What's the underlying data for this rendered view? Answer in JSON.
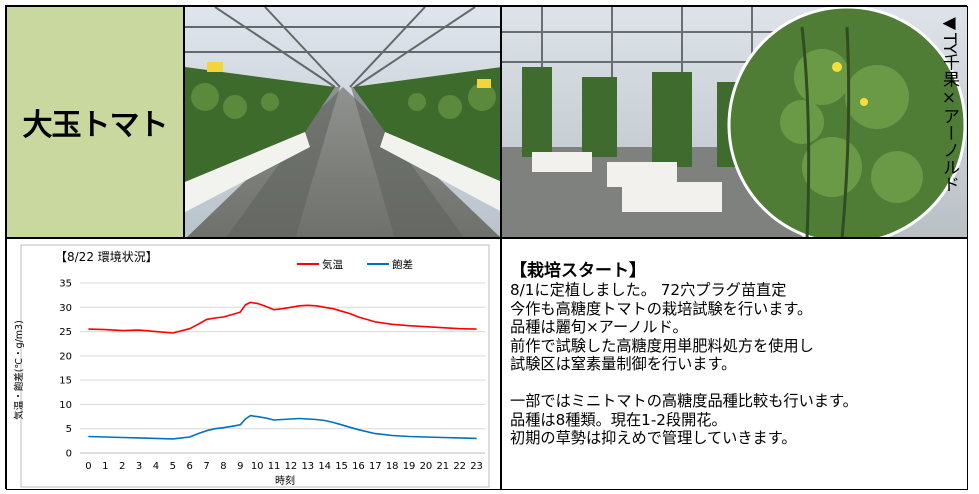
{
  "title": "大玉トマト",
  "photo2_label": "◀TY千果×アーノルド",
  "chart_data": {
    "type": "line",
    "title": "【8/22 環境状況】",
    "xlabel": "時刻",
    "ylabel": "気温・飽差(℃・g/m3)",
    "ylim": [
      0,
      35
    ],
    "yticks": [
      "0",
      "5",
      "10",
      "15",
      "20",
      "25",
      "30",
      "35"
    ],
    "xticks": [
      "0",
      "1",
      "2",
      "3",
      "4",
      "5",
      "6",
      "7",
      "8",
      "9",
      "10",
      "11",
      "12",
      "13",
      "14",
      "15",
      "16",
      "17",
      "18",
      "19",
      "20",
      "21",
      "22",
      "23"
    ],
    "grid": true,
    "legend_position": "top",
    "x": [
      0,
      1,
      2,
      3,
      4,
      5,
      6,
      6.5,
      7,
      7.5,
      8,
      8.5,
      9,
      9.3,
      9.6,
      10,
      10.5,
      11,
      11.5,
      12,
      12.5,
      13,
      13.5,
      14,
      14.5,
      15,
      15.5,
      16,
      17,
      18,
      19,
      20,
      21,
      22,
      23
    ],
    "series": [
      {
        "name": "気温",
        "color": "#ff0000",
        "values": [
          25.5,
          25.4,
          25.2,
          25.3,
          25.0,
          24.7,
          25.6,
          26.5,
          27.5,
          27.8,
          28.0,
          28.5,
          29.0,
          30.5,
          31.0,
          30.8,
          30.2,
          29.5,
          29.7,
          30.0,
          30.3,
          30.4,
          30.3,
          30.0,
          29.7,
          29.2,
          28.7,
          28.0,
          27.0,
          26.5,
          26.2,
          26.0,
          25.8,
          25.6,
          25.5
        ]
      },
      {
        "name": "飽差",
        "color": "#0070c0",
        "values": [
          3.4,
          3.3,
          3.2,
          3.1,
          3.0,
          2.9,
          3.3,
          4.0,
          4.6,
          5.0,
          5.2,
          5.5,
          5.8,
          7.0,
          7.7,
          7.5,
          7.2,
          6.8,
          6.9,
          7.0,
          7.1,
          7.0,
          6.9,
          6.7,
          6.3,
          5.8,
          5.3,
          4.8,
          4.0,
          3.6,
          3.4,
          3.3,
          3.2,
          3.1,
          3.0
        ]
      }
    ]
  },
  "text": {
    "heading": "【栽培スタート】",
    "lines": [
      "8/1に定植しました。 72穴プラグ苗直定",
      "今作も高糖度トマトの栽培試験を行います。",
      "品種は麗旬×アーノルド。",
      "前作で試験した高糖度用単肥料処方を使用し",
      "試験区は窒素量制御を行います。",
      "",
      "一部ではミニトマトの高糖度品種比較も行います。",
      "品種は8種類。現在1-2段開花。",
      "初期の草勢は抑えめで管理していきます。"
    ]
  }
}
